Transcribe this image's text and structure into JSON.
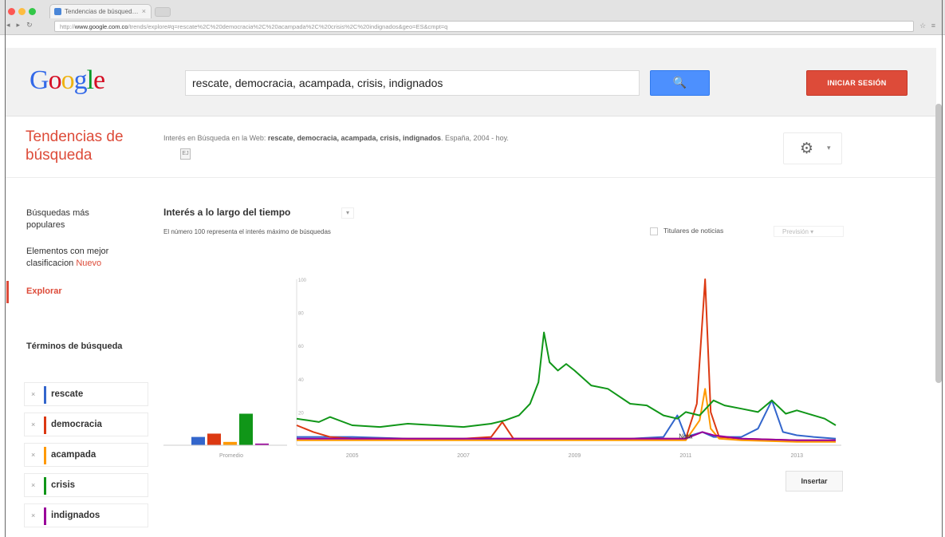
{
  "browser": {
    "tab_title": "Tendencias de búsqued…",
    "url_prefix": "http://",
    "url_domain": "www.google.com.co",
    "url_path": "/trends/explore#q=rescate%2C%20democracia%2C%20acampada%2C%20crisis%2C%20indignados&geo=ES&cmpt=q",
    "nav": {
      "back": "◂",
      "forward": "▸",
      "reload": "↻"
    },
    "right_icons": "☆ ≡"
  },
  "header": {
    "logo_letters": [
      "G",
      "o",
      "o",
      "g",
      "l",
      "e"
    ],
    "logo_colors": [
      "#3369e8",
      "#d50f25",
      "#eeb211",
      "#3369e8",
      "#009925",
      "#d50f25"
    ],
    "search_query": "rescate, democracia, acampada, crisis, indignados",
    "search_icon": "🔍",
    "signin_label": "INICIAR SESIÓN"
  },
  "page": {
    "brand_title_line1": "Tendencias de",
    "brand_title_line2": "búsqueda",
    "interest_prefix": "Interés en Búsqueda en la Web: ",
    "interest_terms": "rescate, democracia, acampada, crisis, indignados",
    "interest_suffix": ". España, 2004 - hoy.",
    "interest_icon": "EJ",
    "gear_icon": "⚙",
    "gear_caret": "▾"
  },
  "sidebar": {
    "popular_line1": "Búsquedas más",
    "popular_line2": "populares",
    "top_line1": "Elementos con mejor",
    "top_line2_a": "clasificacion ",
    "top_line2_new": "Nuevo",
    "explore": "Explorar",
    "terms_title": "Términos de búsqueda",
    "terms": [
      {
        "label": "rescate",
        "color": "#3366cc"
      },
      {
        "label": "democracia",
        "color": "#dc3912"
      },
      {
        "label": "acampada",
        "color": "#ff9900"
      },
      {
        "label": "crisis",
        "color": "#109618"
      },
      {
        "label": "indignados",
        "color": "#990099"
      }
    ],
    "remove_icon": "×"
  },
  "chart_header": {
    "title": "Interés a lo largo del tiempo",
    "title_chevron": "▾",
    "subtitle": "El número 100 representa el interés máximo de búsquedas",
    "news_label": "Titulares de noticias",
    "forecast_label": "Previsión ▾"
  },
  "chart_data": [
    {
      "type": "bar",
      "categories": [
        "rescate",
        "democracia",
        "acampada",
        "crisis",
        "indignados"
      ],
      "values": [
        5,
        7,
        2,
        19,
        1
      ],
      "colors": [
        "#3366cc",
        "#dc3912",
        "#ff9900",
        "#109618",
        "#990099"
      ],
      "xlabel": "Promedio",
      "ylim": [
        0,
        100
      ]
    },
    {
      "type": "line",
      "title": "Interés a lo largo del tiempo",
      "x_ticks": [
        "2005",
        "2007",
        "2009",
        "2011",
        "2013"
      ],
      "x_tick_years": [
        2005,
        2007,
        2009,
        2011,
        2013
      ],
      "xlim": [
        2004.0,
        2013.8
      ],
      "y_ticks": [
        100,
        80,
        60,
        40,
        20
      ],
      "ylim": [
        0,
        100
      ],
      "annotation": {
        "text": "Nota",
        "x": 2011.25,
        "y": 5
      },
      "series": [
        {
          "name": "rescate",
          "color": "#3366cc",
          "points": [
            [
              2004.0,
              5
            ],
            [
              2005.0,
              5
            ],
            [
              2006.0,
              4
            ],
            [
              2007.0,
              4
            ],
            [
              2008.0,
              4
            ],
            [
              2009.0,
              4
            ],
            [
              2010.0,
              4
            ],
            [
              2010.6,
              5
            ],
            [
              2010.85,
              18
            ],
            [
              2011.0,
              5
            ],
            [
              2011.3,
              8
            ],
            [
              2011.5,
              5
            ],
            [
              2012.0,
              5
            ],
            [
              2012.3,
              10
            ],
            [
              2012.55,
              27
            ],
            [
              2012.75,
              8
            ],
            [
              2013.0,
              6
            ],
            [
              2013.3,
              5
            ],
            [
              2013.7,
              4
            ]
          ]
        },
        {
          "name": "democracia",
          "color": "#dc3912",
          "points": [
            [
              2004.0,
              12
            ],
            [
              2004.3,
              8
            ],
            [
              2004.6,
              5
            ],
            [
              2005.0,
              4
            ],
            [
              2006.0,
              4
            ],
            [
              2007.0,
              4
            ],
            [
              2007.5,
              5
            ],
            [
              2007.7,
              14
            ],
            [
              2007.9,
              4
            ],
            [
              2008.5,
              4
            ],
            [
              2009.0,
              4
            ],
            [
              2010.0,
              4
            ],
            [
              2011.0,
              4
            ],
            [
              2011.2,
              25
            ],
            [
              2011.35,
              100
            ],
            [
              2011.45,
              20
            ],
            [
              2011.6,
              5
            ],
            [
              2012.0,
              4
            ],
            [
              2013.0,
              3
            ],
            [
              2013.7,
              3
            ]
          ]
        },
        {
          "name": "acampada",
          "color": "#ff9900",
          "points": [
            [
              2004.0,
              3
            ],
            [
              2005.0,
              3
            ],
            [
              2006.0,
              3
            ],
            [
              2007.0,
              3
            ],
            [
              2008.0,
              3
            ],
            [
              2009.0,
              3
            ],
            [
              2010.0,
              3
            ],
            [
              2011.0,
              3
            ],
            [
              2011.25,
              15
            ],
            [
              2011.35,
              34
            ],
            [
              2011.45,
              10
            ],
            [
              2011.6,
              4
            ],
            [
              2012.0,
              3
            ],
            [
              2013.0,
              2
            ],
            [
              2013.7,
              2
            ]
          ]
        },
        {
          "name": "crisis",
          "color": "#109618",
          "points": [
            [
              2004.0,
              16
            ],
            [
              2004.2,
              15
            ],
            [
              2004.4,
              14
            ],
            [
              2004.6,
              17
            ],
            [
              2005.0,
              12
            ],
            [
              2005.5,
              11
            ],
            [
              2006.0,
              13
            ],
            [
              2006.5,
              12
            ],
            [
              2007.0,
              11
            ],
            [
              2007.5,
              13
            ],
            [
              2007.75,
              15
            ],
            [
              2008.0,
              18
            ],
            [
              2008.2,
              25
            ],
            [
              2008.35,
              38
            ],
            [
              2008.45,
              68
            ],
            [
              2008.55,
              50
            ],
            [
              2008.7,
              45
            ],
            [
              2008.85,
              49
            ],
            [
              2009.0,
              45
            ],
            [
              2009.3,
              36
            ],
            [
              2009.6,
              34
            ],
            [
              2010.0,
              25
            ],
            [
              2010.3,
              24
            ],
            [
              2010.6,
              18
            ],
            [
              2010.85,
              16
            ],
            [
              2011.0,
              20
            ],
            [
              2011.25,
              18
            ],
            [
              2011.5,
              27
            ],
            [
              2011.7,
              24
            ],
            [
              2012.0,
              22
            ],
            [
              2012.3,
              20
            ],
            [
              2012.55,
              27
            ],
            [
              2012.8,
              19
            ],
            [
              2013.0,
              21
            ],
            [
              2013.3,
              18
            ],
            [
              2013.5,
              16
            ],
            [
              2013.7,
              12
            ]
          ]
        },
        {
          "name": "indignados",
          "color": "#990099",
          "points": [
            [
              2004.0,
              4
            ],
            [
              2005.0,
              4
            ],
            [
              2006.0,
              4
            ],
            [
              2007.0,
              4
            ],
            [
              2008.0,
              4
            ],
            [
              2009.0,
              4
            ],
            [
              2010.0,
              4
            ],
            [
              2011.0,
              4
            ],
            [
              2011.3,
              8
            ],
            [
              2011.5,
              6
            ],
            [
              2012.0,
              4
            ],
            [
              2013.0,
              3
            ],
            [
              2013.7,
              3
            ]
          ]
        }
      ]
    }
  ],
  "insert_label": "Insertar"
}
